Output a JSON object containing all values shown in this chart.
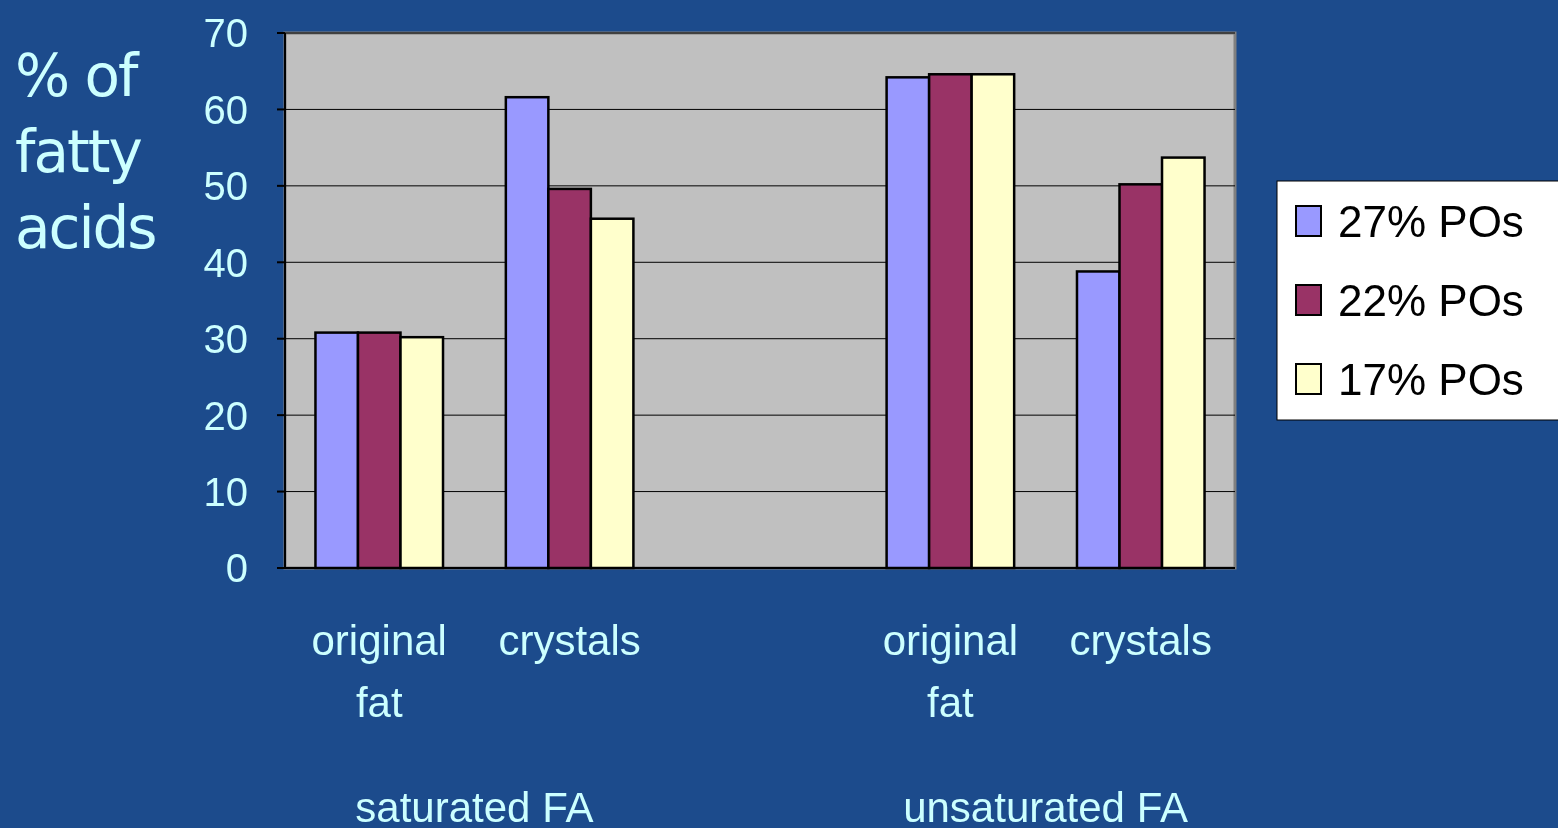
{
  "chart_data": {
    "type": "bar",
    "ylabel": "% of fatty acids",
    "categories": [
      "original fat",
      "crystals",
      null,
      "original fat",
      "crystals"
    ],
    "series": [
      {
        "name": "27% POs",
        "color": "#9999ff",
        "values": [
          30.8,
          61.6,
          null,
          64.2,
          38.8
        ]
      },
      {
        "name": "22% POs",
        "color": "#993366",
        "values": [
          30.8,
          49.6,
          null,
          64.6,
          50.2
        ]
      },
      {
        "name": "17% POs",
        "color": "#ffffcc",
        "values": [
          30.2,
          45.7,
          null,
          64.6,
          53.7
        ]
      }
    ],
    "ylim": [
      0,
      70
    ],
    "yticks": [
      0,
      10,
      20,
      30,
      40,
      50,
      60,
      70
    ],
    "grid": "y",
    "legend": "right",
    "annotations": [
      "saturated FA",
      "unsaturated FA"
    ]
  }
}
